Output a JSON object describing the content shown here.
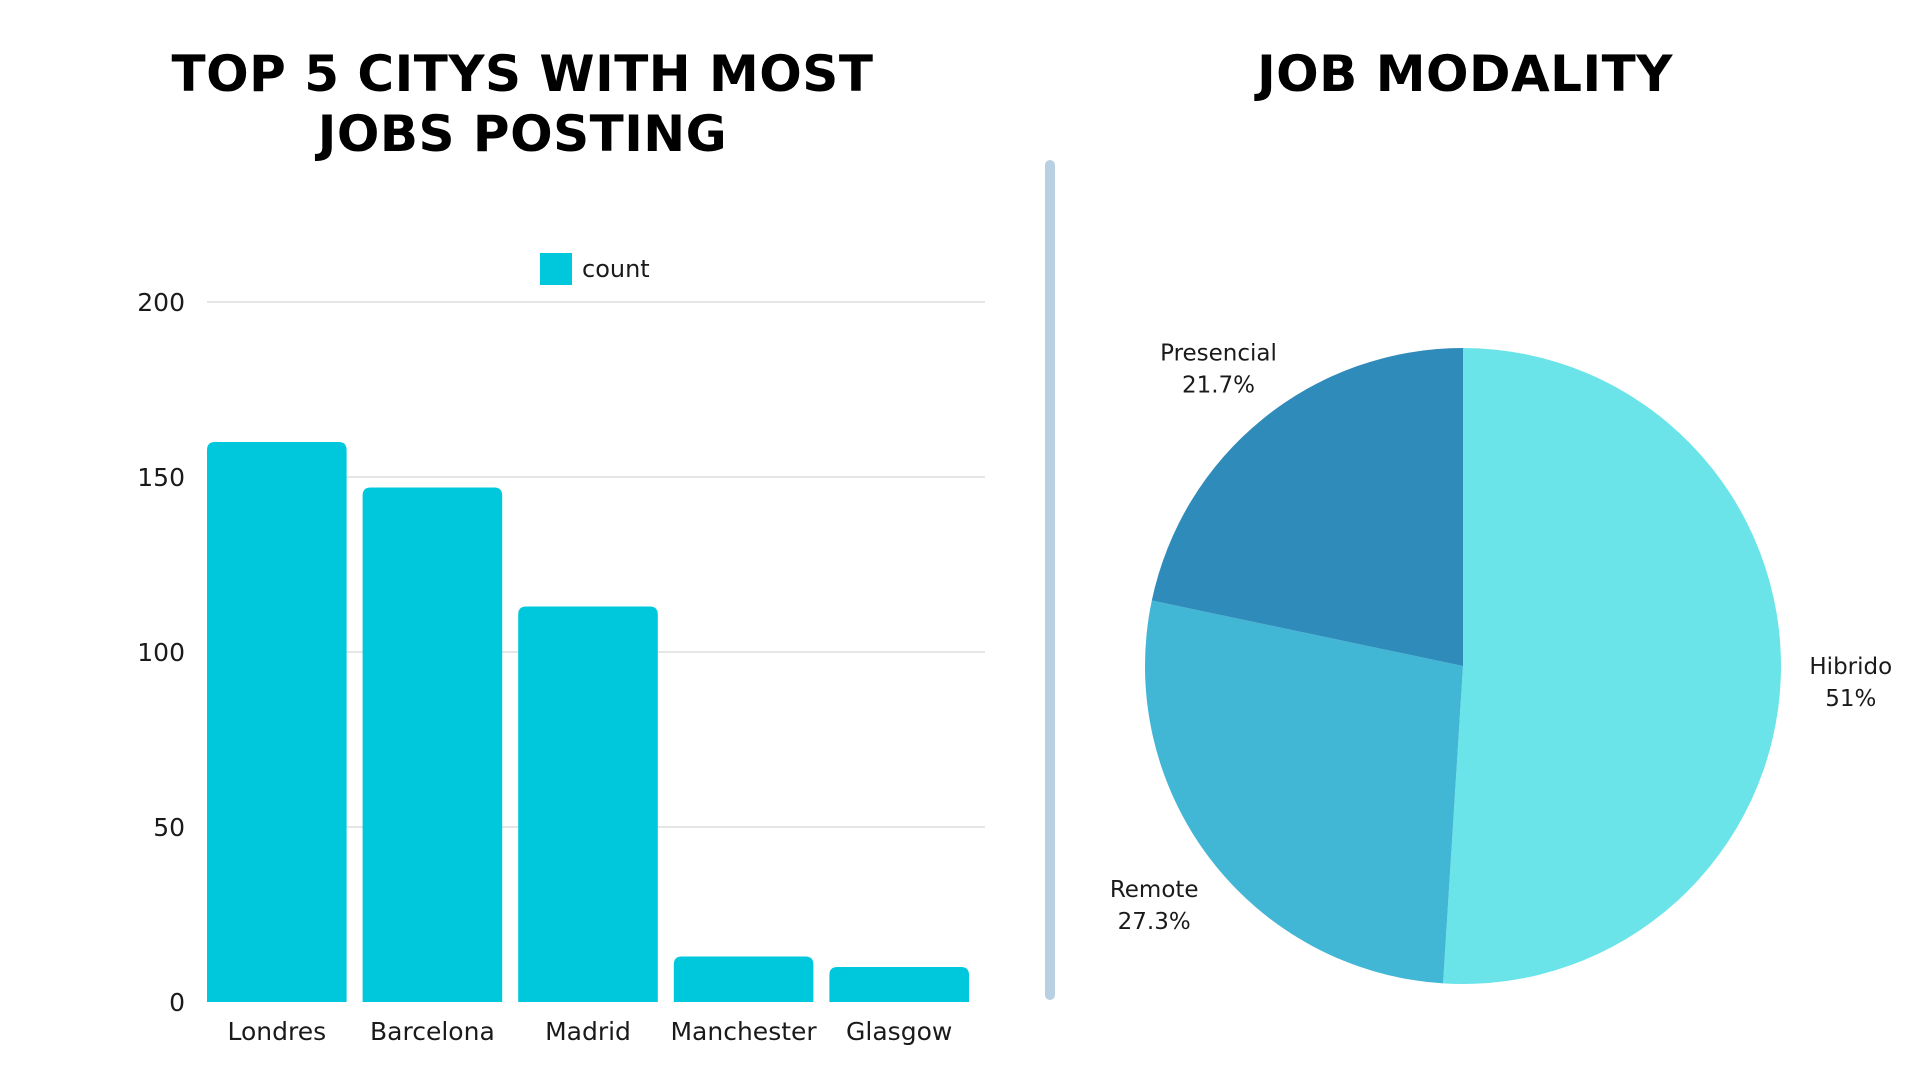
{
  "chart_data": [
    {
      "type": "bar",
      "title_lines": [
        "TOP 5 CITYS WITH MOST",
        "JOBS POSTING"
      ],
      "categories": [
        "Londres",
        "Barcelona",
        "Madrid",
        "Manchester",
        "Glasgow"
      ],
      "series": [
        {
          "name": "count",
          "values": [
            160,
            147,
            113,
            13,
            10
          ],
          "color": "#00c8dc"
        }
      ],
      "yticks": [
        0,
        50,
        100,
        150,
        200
      ],
      "ylim": [
        0,
        200
      ],
      "grid": true,
      "legend": "top-center",
      "xlabel": "",
      "ylabel": ""
    },
    {
      "type": "pie",
      "title": "JOB MODALITY",
      "slices": [
        {
          "label": "Hibrido",
          "value": 51,
          "value_label": "51%",
          "color": "#6ae4e8"
        },
        {
          "label": "Remote",
          "value": 27.3,
          "value_label": "27.3%",
          "color": "#42b6d5"
        },
        {
          "label": "Presencial",
          "value": 21.7,
          "value_label": "21.7%",
          "color": "#2e8bba"
        }
      ],
      "start": "12 o'clock",
      "direction": "clockwise",
      "legend": "none"
    }
  ],
  "colors": {
    "grid": "#dddddd",
    "divider": "#b9cfe2",
    "text": "#1a1a1a"
  }
}
